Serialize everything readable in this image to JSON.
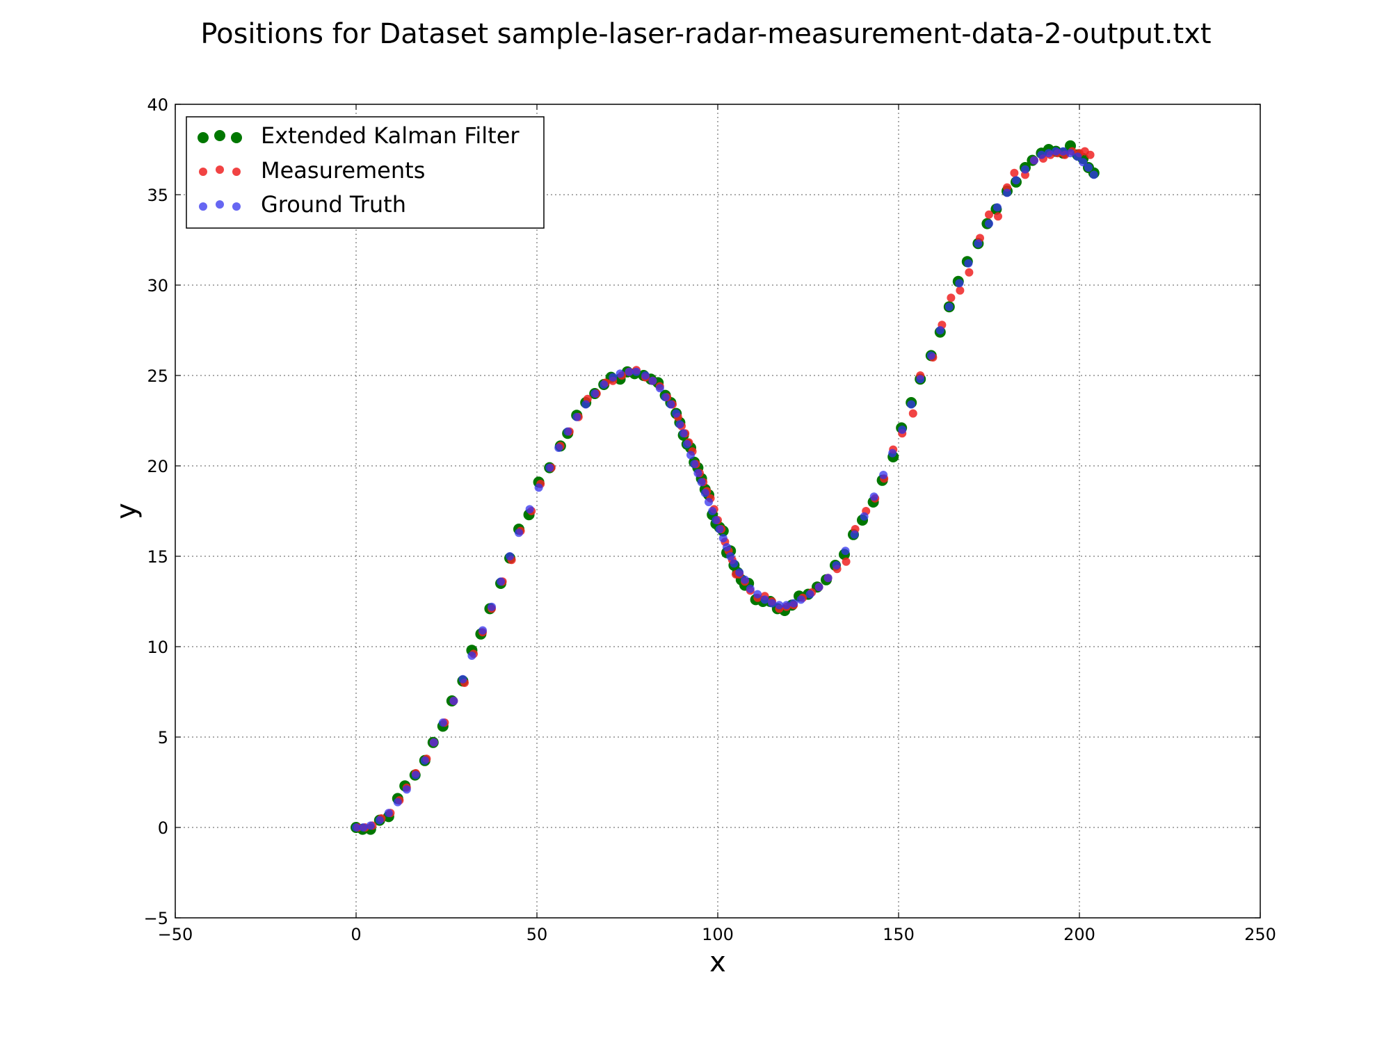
{
  "chart_data": {
    "type": "scatter",
    "title": "Positions for Dataset sample-laser-radar-measurement-data-2-output.txt",
    "xlabel": "x",
    "ylabel": "y",
    "xlim": [
      -50,
      250
    ],
    "ylim": [
      -5,
      40
    ],
    "xticks": [
      -50,
      0,
      50,
      100,
      150,
      200,
      250
    ],
    "yticks": [
      -5,
      0,
      5,
      10,
      15,
      20,
      25,
      30,
      35,
      40
    ],
    "xtick_labels": [
      "−50",
      "0",
      "50",
      "100",
      "150",
      "200",
      "250"
    ],
    "ytick_labels": [
      "−5",
      "0",
      "5",
      "10",
      "15",
      "20",
      "25",
      "30",
      "35",
      "40"
    ],
    "grid": true,
    "legend_position": "top-left",
    "series": [
      {
        "name": "Extended Kalman Filter",
        "color": "#007700",
        "marker": "large-dot",
        "x": [
          0,
          1.8,
          4,
          6.5,
          9,
          11.5,
          13.5,
          16.3,
          19,
          21.3,
          24,
          26.5,
          29.5,
          32,
          34.5,
          37,
          40,
          42.5,
          45,
          47.8,
          50.5,
          53.5,
          56.5,
          58.5,
          61,
          63.5,
          66,
          68.5,
          70.5,
          73,
          75,
          77,
          79.5,
          81.5,
          83.5,
          85.5,
          87,
          88.5,
          89.5,
          90.5,
          91.5,
          92.5,
          93.5,
          94.5,
          95.5,
          96.5,
          97.5,
          98.5,
          99.5,
          100.5,
          101.5,
          102.5,
          103.5,
          104.5,
          105.5,
          106.5,
          107.5,
          108.5,
          110.5,
          112.5,
          114.5,
          116.5,
          118.5,
          120.5,
          122.5,
          125,
          127.5,
          130,
          132.5,
          135,
          137.5,
          140,
          143,
          145.5,
          148.5,
          150.8,
          153.5,
          156,
          159,
          161.5,
          164,
          166.5,
          169,
          172,
          174.5,
          177,
          180,
          182.5,
          185,
          187,
          189.5,
          191.5,
          193.5,
          195.5,
          197.5,
          199.5,
          201,
          202.5,
          204
        ],
        "y": [
          0,
          -0.1,
          -0.1,
          0.4,
          0.6,
          1.6,
          2.3,
          2.9,
          3.7,
          4.7,
          5.6,
          7,
          8.1,
          9.8,
          10.7,
          12.1,
          13.5,
          14.9,
          16.5,
          17.3,
          19.1,
          19.9,
          21.1,
          21.8,
          22.8,
          23.5,
          24,
          24.5,
          24.9,
          24.8,
          25.2,
          25.1,
          25,
          24.8,
          24.6,
          23.9,
          23.5,
          22.9,
          22.4,
          21.7,
          21.2,
          21,
          20.2,
          19.9,
          19.3,
          18.7,
          18.4,
          17.3,
          16.8,
          16.6,
          16.4,
          15.2,
          15.3,
          14.5,
          14.1,
          13.7,
          13.4,
          13.5,
          12.6,
          12.5,
          12.5,
          12.1,
          12,
          12.3,
          12.8,
          12.9,
          13.3,
          13.7,
          14.5,
          15.1,
          16.2,
          17,
          18,
          19.2,
          20.5,
          22.1,
          23.5,
          24.8,
          26.1,
          27.4,
          28.8,
          30.2,
          31.3,
          32.3,
          33.4,
          34.2,
          35.2,
          35.7,
          36.5,
          36.9,
          37.3,
          37.5,
          37.4,
          37.3,
          37.7,
          37.2,
          37,
          36.5,
          36.2
        ]
      },
      {
        "name": "Measurements",
        "color": "#ee2222",
        "marker": "medium-dot",
        "x": [
          0.5,
          2.5,
          4.5,
          7,
          9.5,
          12,
          14,
          16.5,
          19.5,
          21.5,
          24.5,
          27,
          30,
          32.5,
          35,
          37.5,
          40.5,
          43,
          45.5,
          48.5,
          51,
          54,
          56.5,
          59,
          61.5,
          64,
          66.5,
          69,
          71,
          73.5,
          75.5,
          77.5,
          80,
          82,
          84,
          86,
          87.5,
          89,
          90,
          91,
          92,
          93,
          94,
          95,
          96,
          97,
          98,
          99,
          100,
          101,
          102,
          103,
          104,
          105,
          106,
          107.5,
          109,
          111,
          113,
          115,
          117,
          119,
          121,
          123.5,
          126,
          128,
          130.5,
          133,
          135.5,
          138,
          141,
          143.5,
          146,
          148.5,
          151,
          154,
          156,
          159.5,
          162,
          164.5,
          167,
          169.5,
          172.5,
          175,
          177.5,
          180,
          182,
          185,
          187.5,
          190,
          192,
          194,
          196,
          198,
          200,
          201.5,
          203
        ],
        "y": [
          0,
          0,
          0.1,
          0.5,
          0.8,
          1.5,
          2.2,
          3,
          3.8,
          4.7,
          5.8,
          7,
          8,
          9.6,
          10.8,
          12.1,
          13.6,
          14.8,
          16.4,
          17.5,
          19,
          19.9,
          21.1,
          21.9,
          22.7,
          23.7,
          24,
          24.6,
          24.7,
          25,
          25.2,
          25.3,
          24.9,
          24.7,
          24.4,
          23.8,
          23.4,
          22.7,
          22.2,
          21.8,
          21.3,
          20.8,
          20.1,
          19.6,
          19.1,
          18.6,
          18.2,
          17.6,
          17,
          16.5,
          15.8,
          15.3,
          14.8,
          14,
          14,
          13.6,
          13.1,
          12.7,
          12.8,
          12.5,
          12.1,
          12.2,
          12.3,
          12.7,
          13,
          13.3,
          13.8,
          14.3,
          14.7,
          16.5,
          17.5,
          18.2,
          19.3,
          20.9,
          21.8,
          22.9,
          25,
          26,
          27.8,
          29.3,
          29.7,
          30.7,
          32.6,
          33.9,
          33.8,
          35.4,
          36.2,
          36.1,
          36.9,
          37,
          37.2,
          37.3,
          37.2,
          37.4,
          37.3,
          37.4,
          37.2
        ]
      },
      {
        "name": "Ground Truth",
        "color": "#3333ee",
        "marker": "medium-dot",
        "x": [
          0,
          2,
          4,
          6.5,
          9,
          11.5,
          14,
          16.5,
          19,
          21.5,
          24,
          27,
          29.5,
          32,
          35,
          37.5,
          40,
          42.5,
          45,
          48,
          50.5,
          53.5,
          56,
          58.5,
          61,
          63.5,
          66,
          68.5,
          71,
          73,
          75.5,
          77.5,
          80,
          82,
          84,
          85.5,
          87,
          88.5,
          89.5,
          90.5,
          91.5,
          92.5,
          93.5,
          94.5,
          95.5,
          96.5,
          97.5,
          98.5,
          99.5,
          100.5,
          101.5,
          102.5,
          103.5,
          104.5,
          106,
          107.5,
          109,
          111,
          113,
          115,
          117,
          119,
          121,
          123,
          125.5,
          128,
          130.5,
          132.8,
          135.3,
          137.8,
          140.5,
          143.2,
          145.8,
          148.3,
          151,
          153.5,
          156,
          159,
          161.5,
          164,
          166.8,
          169.3,
          172,
          175,
          177.3,
          180,
          182.5,
          185,
          187.5,
          189.5,
          191.5,
          193.5,
          195.5,
          197.5,
          199.5,
          201,
          202.5,
          204
        ],
        "y": [
          0,
          0,
          0.1,
          0.4,
          0.8,
          1.4,
          2.1,
          2.9,
          3.7,
          4.7,
          5.8,
          7,
          8.2,
          9.5,
          10.9,
          12.2,
          13.6,
          15,
          16.3,
          17.6,
          18.8,
          19.9,
          21,
          21.9,
          22.7,
          23.4,
          24,
          24.5,
          24.9,
          25.1,
          25.2,
          25.2,
          25,
          24.7,
          24.3,
          23.8,
          23.4,
          22.9,
          22.3,
          21.8,
          21.2,
          20.6,
          20.1,
          19.6,
          19.1,
          18.5,
          18,
          17.5,
          17,
          16.5,
          16,
          15.5,
          15,
          14.6,
          14.1,
          13.7,
          13.2,
          12.9,
          12.6,
          12.4,
          12.3,
          12.3,
          12.4,
          12.6,
          12.9,
          13.3,
          13.8,
          14.5,
          15.3,
          16.2,
          17.2,
          18.3,
          19.5,
          20.7,
          22,
          23.4,
          24.8,
          26.1,
          27.5,
          28.8,
          30.1,
          31.2,
          32.3,
          33.4,
          34.3,
          35.1,
          35.8,
          36.4,
          36.9,
          37.2,
          37.3,
          37.4,
          37.4,
          37.3,
          37.1,
          36.8,
          36.5,
          36.1
        ]
      }
    ]
  }
}
